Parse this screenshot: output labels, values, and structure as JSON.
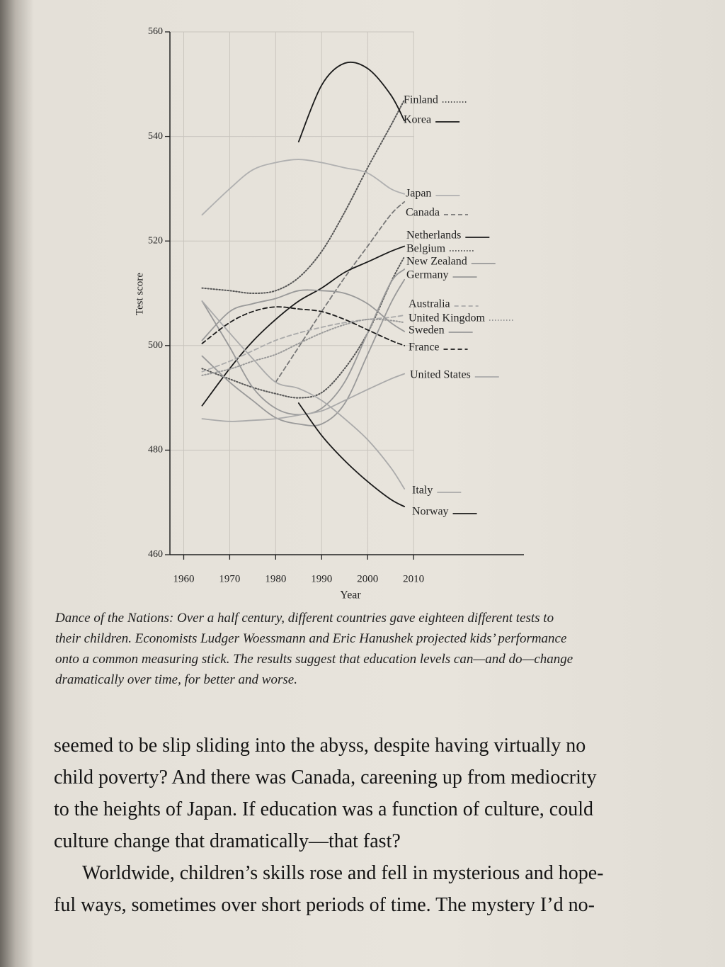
{
  "chart_data": {
    "type": "line",
    "xlabel": "Year",
    "ylabel": "Test score",
    "x": [
      1964,
      1970,
      1975,
      1980,
      1985,
      1990,
      1995,
      2000,
      2005,
      2008
    ],
    "xlim": [
      1957,
      2034
    ],
    "xticks": [
      1960,
      1970,
      1980,
      1990,
      2000,
      2010
    ],
    "ylim": [
      460,
      560
    ],
    "yticks": [
      460,
      480,
      500,
      520,
      540,
      560
    ],
    "grid": true,
    "series": [
      {
        "name": "Finland",
        "color": "#555555",
        "style": "dotted",
        "values": [
          511,
          510.5,
          510,
          510.5,
          513,
          518,
          525.5,
          534,
          542,
          547
        ]
      },
      {
        "name": "Korea",
        "color": "#1a1a1a",
        "style": "solid",
        "values": [
          null,
          null,
          null,
          null,
          539,
          549.8,
          554,
          553,
          548,
          543
        ]
      },
      {
        "name": "Japan",
        "color": "#b0b0b0",
        "style": "solid",
        "values": [
          525,
          530,
          533.6,
          535,
          535.6,
          535,
          534,
          533,
          530,
          529
        ]
      },
      {
        "name": "Canada",
        "color": "#777777",
        "style": "dashed",
        "values": [
          null,
          null,
          null,
          493,
          499.7,
          506.5,
          513,
          519,
          525,
          527.5
        ]
      },
      {
        "name": "Netherlands",
        "color": "#1a1a1a",
        "style": "solid",
        "values": [
          488.5,
          495.6,
          500.8,
          505,
          508.5,
          511,
          514,
          516,
          518,
          519
        ]
      },
      {
        "name": "Belgium",
        "color": "#555555",
        "style": "dotted",
        "values": [
          495.6,
          493.6,
          492,
          490.8,
          490,
          491,
          495.6,
          502.4,
          512,
          517
        ]
      },
      {
        "name": "New Zealand",
        "color": "#999999",
        "style": "solid",
        "values": [
          508.5,
          499.7,
          492,
          488,
          486.8,
          488,
          493,
          502.4,
          512,
          514.6
        ]
      },
      {
        "name": "Germany",
        "color": "#999999",
        "style": "solid",
        "values": [
          498,
          493,
          489.5,
          486.2,
          485,
          485,
          488.9,
          498.3,
          508,
          512.6
        ]
      },
      {
        "name": "Australia",
        "color": "#aaaaaa",
        "style": "dashed",
        "values": [
          495,
          497,
          499,
          501,
          502.4,
          503.5,
          504.4,
          505,
          505.4,
          505.8
        ]
      },
      {
        "name": "United Kingdom",
        "color": "#999999",
        "style": "dotted",
        "values": [
          494.3,
          495.5,
          497,
          498.3,
          500.4,
          502.4,
          504,
          505,
          504.8,
          504.4
        ]
      },
      {
        "name": "Sweden",
        "color": "#999999",
        "style": "solid",
        "values": [
          501,
          506.5,
          508,
          509,
          510.5,
          510.5,
          510,
          508,
          504.4,
          502.7
        ]
      },
      {
        "name": "France",
        "color": "#1a1a1a",
        "style": "dashed",
        "values": [
          500.4,
          504.4,
          506.5,
          507.4,
          507,
          506.5,
          505,
          503,
          501,
          500
        ]
      },
      {
        "name": "United States",
        "color": "#aaaaaa",
        "style": "solid",
        "values": [
          486,
          485.5,
          485.7,
          486,
          486.7,
          487.5,
          489.5,
          491.6,
          493.6,
          494.6
        ]
      },
      {
        "name": "Italy",
        "color": "#aaaaaa",
        "style": "solid",
        "values": [
          508.5,
          502.4,
          497.5,
          493,
          491.8,
          489.5,
          486,
          482,
          476.7,
          472.6
        ]
      },
      {
        "name": "Norway",
        "color": "#1a1a1a",
        "style": "solid",
        "values": [
          null,
          null,
          null,
          null,
          489,
          482.8,
          478,
          474,
          470.6,
          469.2
        ]
      }
    ]
  },
  "caption": [
    "Dance of the Nations: Over a half century, different countries gave eighteen different tests to",
    "their children. Economists Ludger Woessmann and Eric Hanushek projected kids’ performance",
    "onto a common measuring stick. The results suggest that education levels can—and do—change",
    "dramatically over time, for better and worse."
  ],
  "body": [
    "seemed to be slip sliding into the abyss, despite having virtually no",
    "child poverty? And there was Canada, careening up from mediocrity",
    "to the heights of Japan. If education was a function of culture, could",
    "culture change that dramatically—that fast?",
    "Worldwide, children’s skills rose and fell in mysterious and hope-",
    "ful ways, sometimes over short periods of time. The mystery I’d no-"
  ]
}
